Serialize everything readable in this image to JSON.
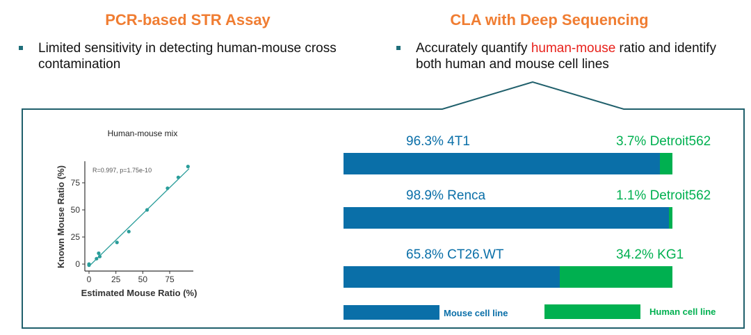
{
  "left": {
    "title": "PCR-based STR Assay",
    "bullet": "Limited sensitivity in detecting human-mouse cross contamination"
  },
  "right": {
    "title": "CLA with Deep Sequencing",
    "bullet_pre": "Accurately quantify ",
    "bullet_highlight": "human-mouse",
    "bullet_post": " ratio and identify both human and mouse cell lines"
  },
  "colors": {
    "title": "#f07d32",
    "mouse": "#0a6fa8",
    "human": "#00b050",
    "border": "#1f5f6b",
    "scatter": "#2a9d9a",
    "highlight": "#e8211b"
  },
  "chart_data": [
    {
      "type": "scatter",
      "title": "Human-mouse mix",
      "xlabel": "Estimated Mouse Ratio (%)",
      "ylabel": "Known Mouse Ratio (%)",
      "annotation": "R=0.997, p=1.75e-10",
      "xticks": [
        "0",
        "25",
        "50",
        "75"
      ],
      "yticks": [
        "0",
        "25",
        "50",
        "75"
      ],
      "xlim": [
        -3,
        97
      ],
      "ylim": [
        -6,
        95
      ],
      "points": [
        [
          0,
          0
        ],
        [
          0,
          -1
        ],
        [
          7,
          5
        ],
        [
          9,
          10
        ],
        [
          10,
          7
        ],
        [
          26,
          20
        ],
        [
          37,
          30
        ],
        [
          54,
          50
        ],
        [
          73,
          70
        ],
        [
          83,
          80
        ],
        [
          92,
          90
        ]
      ],
      "fit_line": [
        [
          0,
          -2
        ],
        [
          93,
          88
        ]
      ],
      "grid": false
    },
    {
      "type": "bar",
      "orientation": "horizontal",
      "stacked": true,
      "rows": [
        {
          "mouse_label": "96.3% 4T1",
          "mouse": 96.3,
          "human_label": "3.7% Detroit562",
          "human": 3.7
        },
        {
          "mouse_label": "98.9% Renca",
          "mouse": 98.9,
          "human_label": "1.1% Detroit562",
          "human": 1.1
        },
        {
          "mouse_label": "65.8% CT26.WT",
          "mouse": 65.8,
          "human_label": "34.2% KG1",
          "human": 34.2
        }
      ],
      "legend": {
        "mouse": "Mouse cell line",
        "human": "Human cell line",
        "placement": "bottom"
      }
    }
  ]
}
